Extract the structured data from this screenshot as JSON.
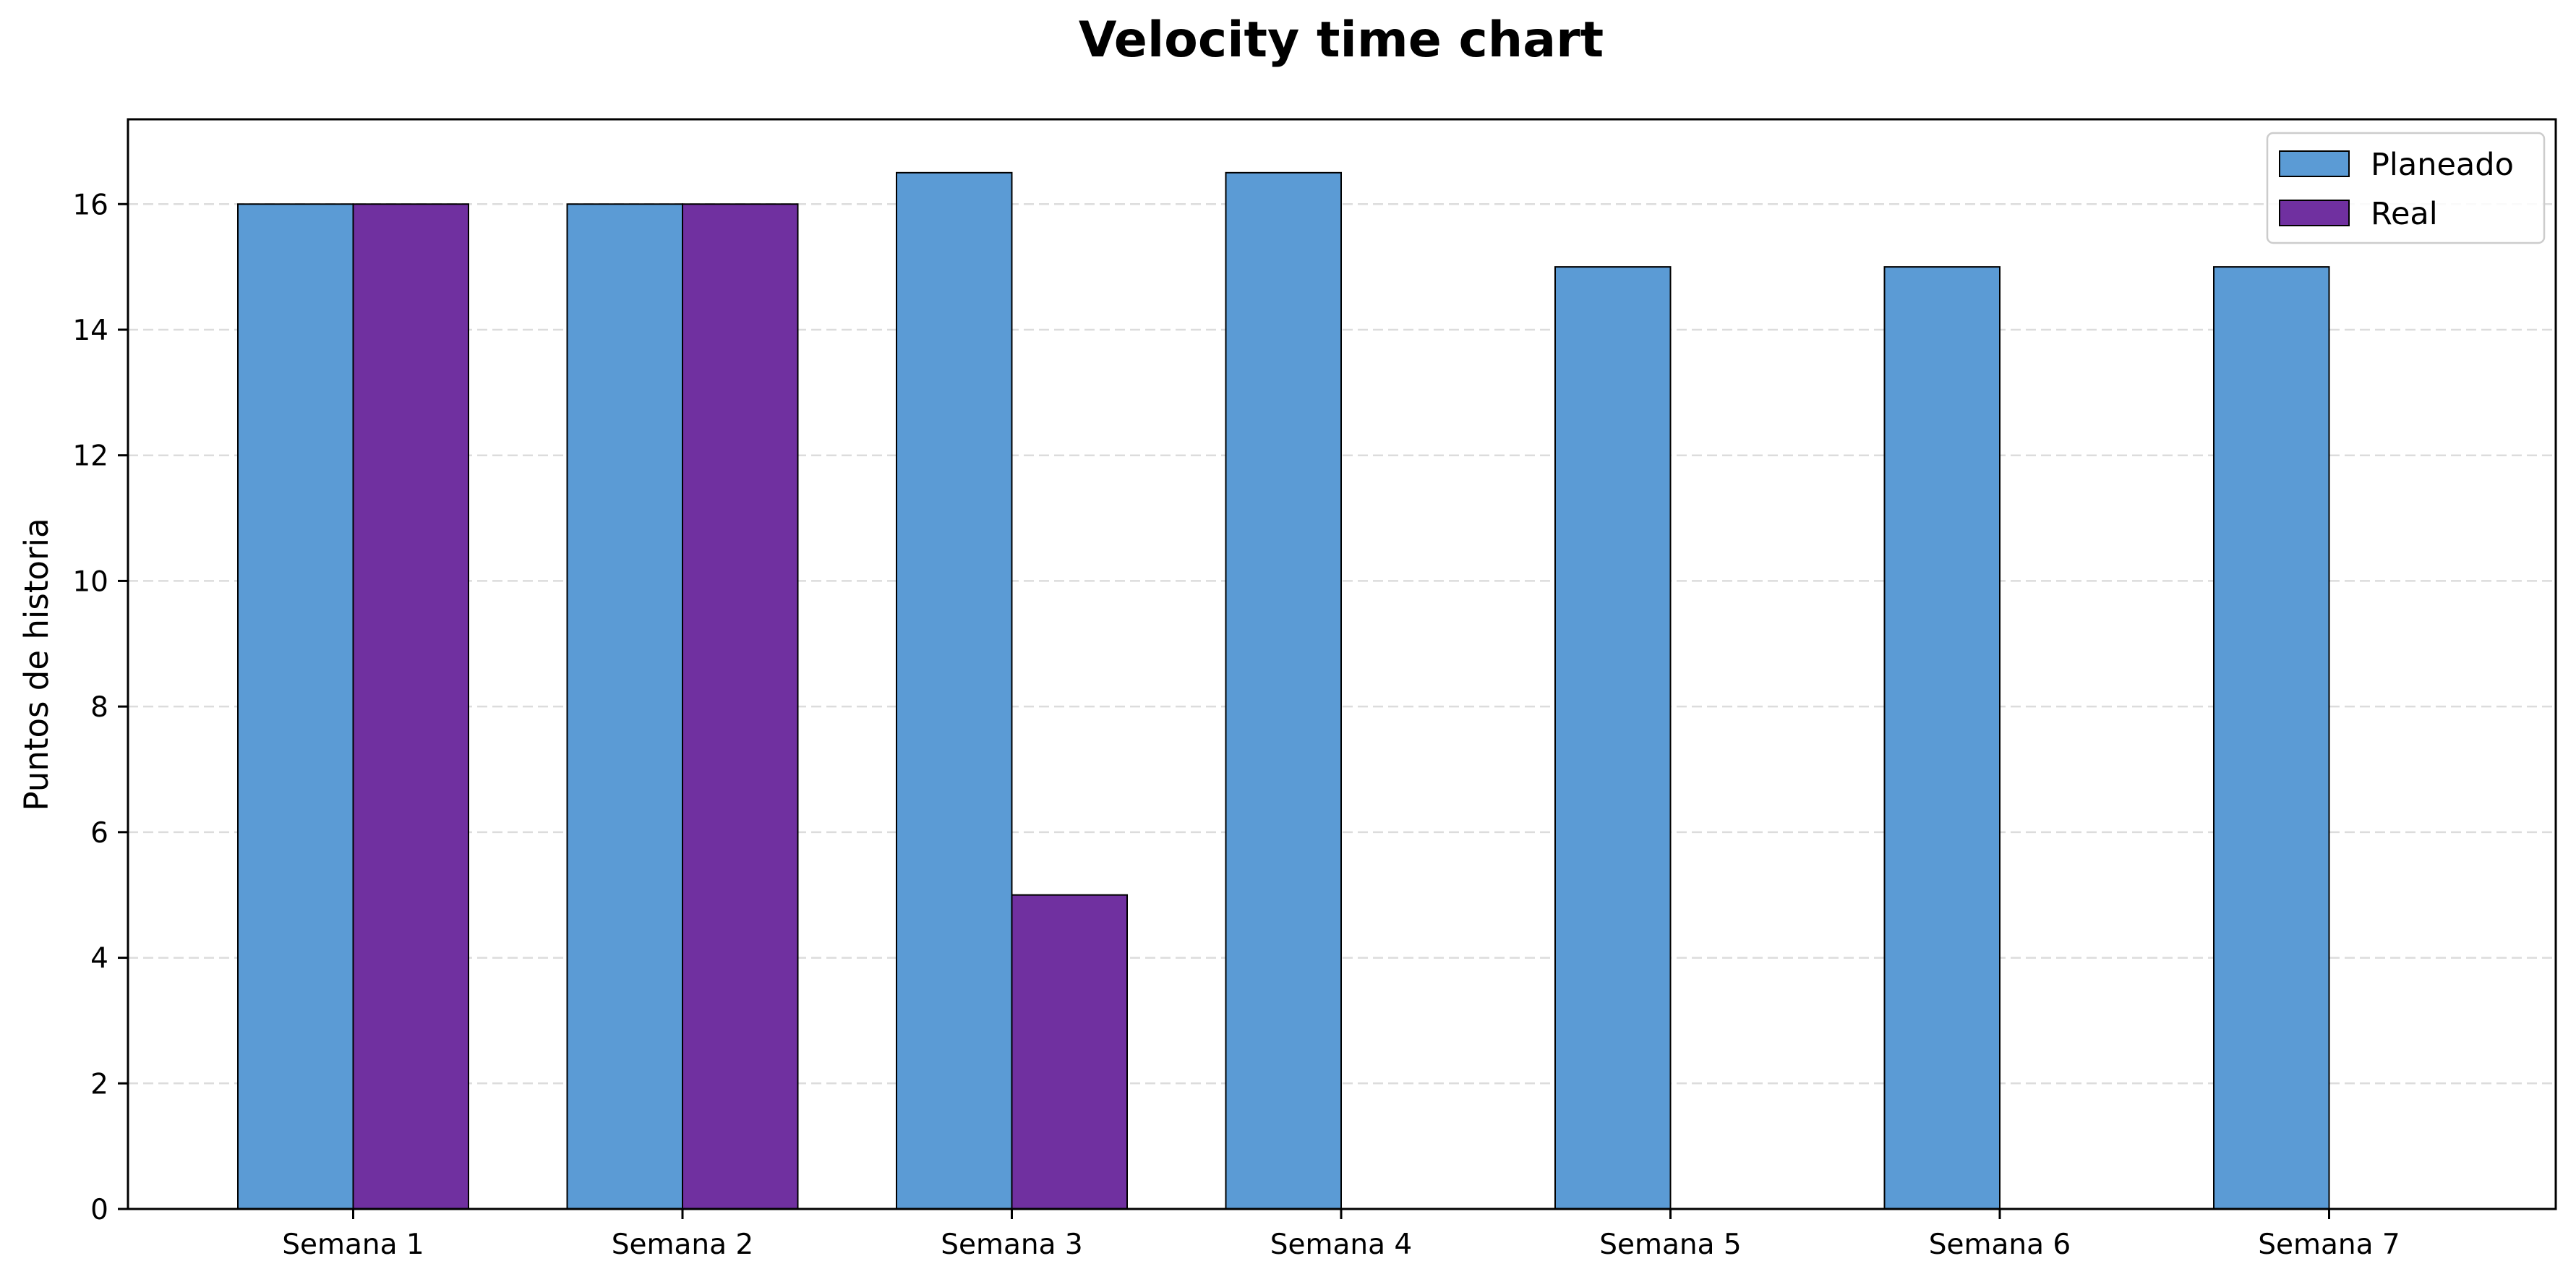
{
  "chart_data": {
    "type": "bar",
    "title": "Velocity time chart",
    "xlabel": "",
    "ylabel": "Puntos de historia",
    "categories": [
      "Semana 1",
      "Semana 2",
      "Semana 3",
      "Semana 4",
      "Semana 5",
      "Semana 6",
      "Semana 7"
    ],
    "series": [
      {
        "name": "Planeado",
        "values": [
          16,
          16,
          16.5,
          16.5,
          15,
          15,
          15
        ],
        "color": "#5b9bd5"
      },
      {
        "name": "Real",
        "values": [
          16,
          16,
          5,
          0,
          0,
          0,
          0
        ],
        "color": "#7030a0"
      }
    ],
    "ylim": [
      0,
      17.35
    ],
    "yticks": [
      0,
      2,
      4,
      6,
      8,
      10,
      12,
      14,
      16
    ],
    "grid": "y-dashed",
    "legend_position": "top-right"
  }
}
